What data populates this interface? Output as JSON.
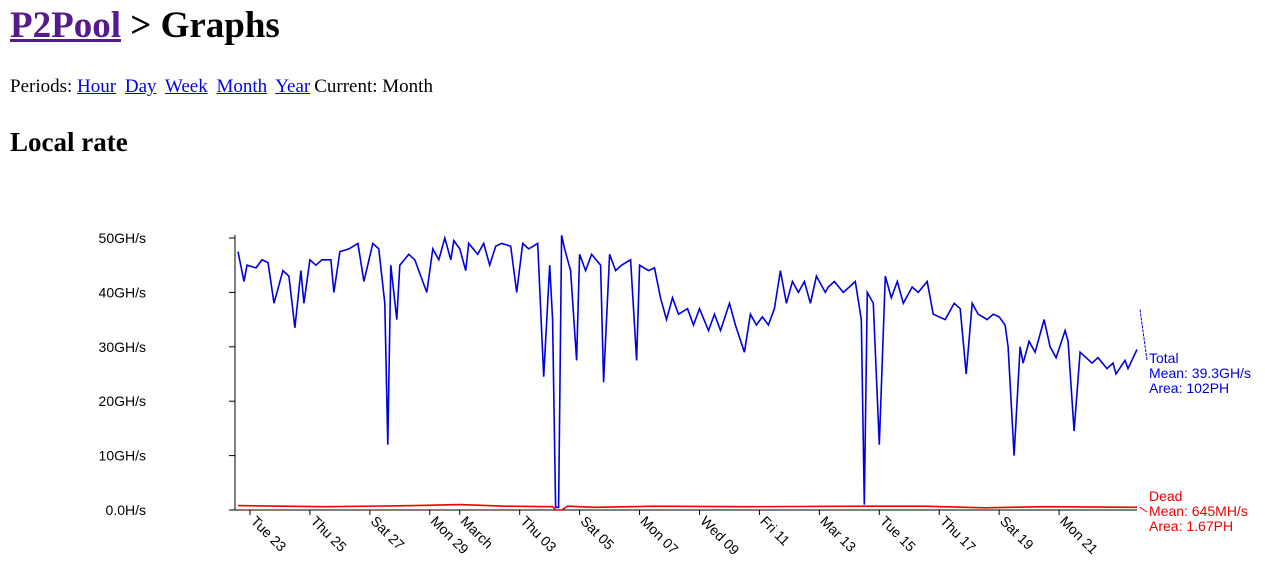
{
  "header": {
    "title_link": "P2Pool",
    "title_rest": "> Graphs"
  },
  "periods": {
    "label": "Periods:",
    "links": [
      "Hour",
      "Day",
      "Week",
      "Month",
      "Year"
    ],
    "current": "Current: Month"
  },
  "section_title": "Local rate",
  "chart_data": {
    "type": "line",
    "xlim": [
      0,
      30.1
    ],
    "xticks": [
      {
        "value": 0.5,
        "label": "Tue 23"
      },
      {
        "value": 2.5,
        "label": "Thu 25"
      },
      {
        "value": 4.5,
        "label": "Sat 27"
      },
      {
        "value": 6.5,
        "label": "Mon 29"
      },
      {
        "value": 7.5,
        "label": "March"
      },
      {
        "value": 9.5,
        "label": "Thu 03"
      },
      {
        "value": 11.5,
        "label": "Sat 05"
      },
      {
        "value": 13.5,
        "label": "Mon 07"
      },
      {
        "value": 15.5,
        "label": "Wed 09"
      },
      {
        "value": 17.5,
        "label": "Fri 11"
      },
      {
        "value": 19.5,
        "label": "Mar 13"
      },
      {
        "value": 21.5,
        "label": "Tue 15"
      },
      {
        "value": 23.5,
        "label": "Thu 17"
      },
      {
        "value": 25.5,
        "label": "Sat 19"
      },
      {
        "value": 27.5,
        "label": "Mon 21"
      }
    ],
    "ylim": [
      0,
      50
    ],
    "yticks": [
      {
        "value": 0,
        "label": "0.0H/s"
      },
      {
        "value": 10,
        "label": "10GH/s"
      },
      {
        "value": 20,
        "label": "20GH/s"
      },
      {
        "value": 30,
        "label": "30GH/s"
      },
      {
        "value": 40,
        "label": "40GH/s"
      },
      {
        "value": 50,
        "label": "50GH/s"
      }
    ],
    "series": [
      {
        "name": "Total",
        "color": "#0000dd",
        "mean": "Mean: 39.3GH/s",
        "area": "Area: 102PH",
        "x": [
          0.1,
          0.3,
          0.4,
          0.7,
          0.9,
          1.1,
          1.3,
          1.6,
          1.8,
          2.0,
          2.2,
          2.3,
          2.5,
          2.7,
          2.9,
          3.2,
          3.3,
          3.5,
          3.8,
          4.1,
          4.3,
          4.6,
          4.8,
          5.0,
          5.1,
          5.2,
          5.4,
          5.5,
          5.8,
          6.0,
          6.2,
          6.4,
          6.6,
          6.8,
          7.0,
          7.2,
          7.3,
          7.5,
          7.7,
          7.8,
          8.1,
          8.3,
          8.5,
          8.7,
          8.9,
          9.2,
          9.4,
          9.6,
          9.8,
          10.1,
          10.3,
          10.5,
          10.6,
          10.7,
          10.8,
          10.9,
          11.0,
          11.2,
          11.4,
          11.5,
          11.7,
          11.9,
          12.2,
          12.3,
          12.5,
          12.7,
          12.9,
          13.2,
          13.4,
          13.5,
          13.8,
          14.0,
          14.2,
          14.4,
          14.6,
          14.8,
          15.1,
          15.3,
          15.5,
          15.8,
          16.0,
          16.2,
          16.5,
          16.7,
          17.0,
          17.2,
          17.4,
          17.6,
          17.8,
          18.0,
          18.2,
          18.4,
          18.6,
          18.8,
          19.0,
          19.2,
          19.4,
          19.7,
          19.8,
          20.0,
          20.3,
          20.5,
          20.7,
          20.9,
          21.0,
          21.1,
          21.3,
          21.5,
          21.7,
          21.9,
          22.1,
          22.3,
          22.6,
          22.8,
          23.1,
          23.3,
          23.7,
          24.0,
          24.2,
          24.4,
          24.6,
          24.8,
          25.1,
          25.3,
          25.5,
          25.7,
          25.8,
          26.0,
          26.2,
          26.3,
          26.5,
          26.7,
          27.0,
          27.2,
          27.4,
          27.7,
          27.8,
          28.0,
          28.2,
          28.4,
          28.6,
          28.8,
          29.1,
          29.3,
          29.4,
          29.7,
          29.8,
          30.1
        ],
        "values": [
          47.5,
          42,
          45,
          44.5,
          46,
          45.5,
          38,
          44,
          43,
          33.5,
          44,
          38,
          46,
          45,
          46,
          46,
          40,
          47.5,
          48,
          49,
          42,
          49,
          48,
          38,
          12,
          45,
          35,
          45,
          47,
          46,
          43,
          40,
          48,
          46,
          50,
          46,
          49.5,
          48,
          44,
          49,
          47,
          49,
          45,
          48.5,
          49,
          48.5,
          40,
          49,
          48,
          49,
          24.5,
          45,
          35,
          0.5,
          0.5,
          50.5,
          48,
          44,
          27.5,
          47,
          44,
          47,
          45,
          23.5,
          47,
          44,
          45,
          46,
          27.5,
          45,
          44,
          44.5,
          39,
          35,
          39,
          36,
          37,
          34,
          37,
          33,
          36,
          33,
          38,
          34,
          29,
          36,
          34,
          35.5,
          34,
          37,
          44,
          38,
          42,
          40,
          42,
          38,
          43,
          40,
          41,
          42,
          40,
          41,
          42,
          35,
          1,
          40,
          38,
          12,
          43,
          39,
          42,
          38,
          41,
          40,
          42,
          36,
          35,
          38,
          37,
          25,
          38,
          36,
          35,
          36,
          35.5,
          34,
          30,
          10,
          30,
          27,
          31,
          29,
          35,
          30,
          28,
          33,
          31,
          14.5,
          29,
          28,
          27,
          28,
          26,
          27,
          25,
          27.5,
          26,
          29.5
        ]
      },
      {
        "name": "Dead",
        "color": "#ee0000",
        "mean": "Mean: 645MH/s",
        "area": "Area: 1.67PH",
        "x": [
          0.1,
          3,
          6,
          7.5,
          9,
          10.6,
          10.7,
          10.9,
          11.1,
          12,
          14,
          17,
          21,
          23,
          25,
          27,
          30.1
        ],
        "values": [
          0.8,
          0.6,
          0.8,
          1.0,
          0.7,
          0.6,
          0,
          0,
          0.7,
          0.5,
          0.7,
          0.6,
          0.7,
          0.7,
          0.4,
          0.6,
          0.5
        ]
      }
    ]
  }
}
